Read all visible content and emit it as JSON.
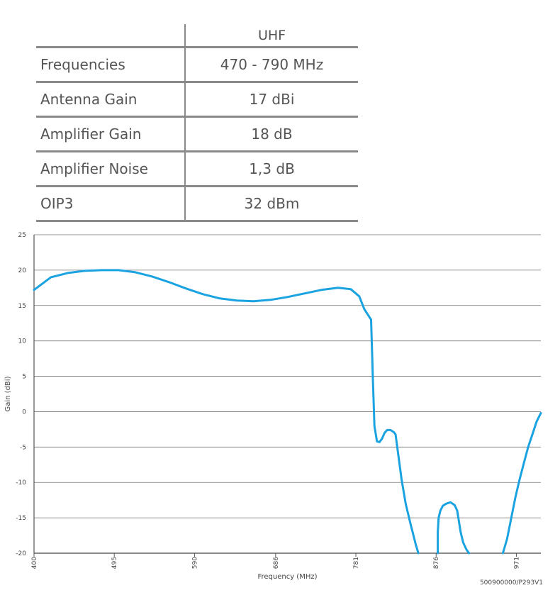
{
  "table": {
    "header": "UHF",
    "rows": [
      {
        "label": "Frequencies",
        "value": "470 - 790 MHz"
      },
      {
        "label": "Antenna Gain",
        "value": "17 dBi"
      },
      {
        "label": "Amplifier Gain",
        "value": "18 dB"
      },
      {
        "label": "Amplifier Noise",
        "value": "1,3 dB"
      },
      {
        "label": "OIP3",
        "value": "32 dBm"
      }
    ]
  },
  "chart_data": {
    "type": "line",
    "title": "",
    "xlabel": "Frequency (MHz)",
    "ylabel": "Gain (dBi)",
    "xlim": [
      400,
      1000
    ],
    "ylim": [
      -20,
      25
    ],
    "x_ticks": [
      400,
      495,
      590,
      686,
      781,
      876,
      971
    ],
    "y_ticks": [
      25,
      20,
      15,
      10,
      5,
      0,
      -5,
      -10,
      -15,
      -20
    ],
    "grid": "horizontal",
    "series_color": "#1aa3e0",
    "series": [
      {
        "segments": [
          {
            "x": [
              400,
              420,
              440,
              460,
              480,
              500,
              520,
              540,
              560,
              580,
              600,
              620,
              640,
              660,
              680,
              700,
              720,
              740,
              760,
              775,
              785,
              791,
              799
            ],
            "y": [
              17.2,
              19.0,
              19.6,
              19.9,
              20.0,
              20.0,
              19.7,
              19.1,
              18.3,
              17.4,
              16.6,
              16.0,
              15.7,
              15.6,
              15.8,
              16.2,
              16.7,
              17.2,
              17.5,
              17.3,
              16.3,
              14.5,
              13.0
            ]
          },
          {
            "x": [
              799,
              801,
              803,
              806,
              809,
              812,
              815,
              818,
              822,
              826,
              828,
              830
            ],
            "y": [
              13.0,
              5.0,
              -2.0,
              -4.2,
              -4.3,
              -3.8,
              -3.0,
              -2.6,
              -2.6,
              -2.9,
              -3.2,
              -5.0
            ]
          },
          {
            "x": [
              830,
              835,
              840,
              846,
              852,
              855
            ],
            "y": [
              -5.0,
              -9.5,
              -13.0,
              -16.0,
              -18.8,
              -20.0
            ]
          },
          {
            "x": [
              878,
              878,
              879,
              881,
              884,
              888,
              893,
              898,
              901,
              903,
              905,
              908,
              912,
              915
            ],
            "y": [
              -20.0,
              -17.0,
              -15.0,
              -14.0,
              -13.3,
              -13.0,
              -12.8,
              -13.2,
              -14.0,
              -15.5,
              -17.0,
              -18.5,
              -19.5,
              -20.0
            ]
          },
          {
            "x": [
              955,
              960,
              965,
              970,
              975,
              980,
              985,
              990,
              995,
              1000
            ],
            "y": [
              -20.0,
              -18.0,
              -15.0,
              -12.0,
              -9.5,
              -7.2,
              -5.0,
              -3.2,
              -1.4,
              -0.2
            ]
          }
        ]
      }
    ]
  },
  "footer": {
    "ref": "500900000/P293V1"
  }
}
